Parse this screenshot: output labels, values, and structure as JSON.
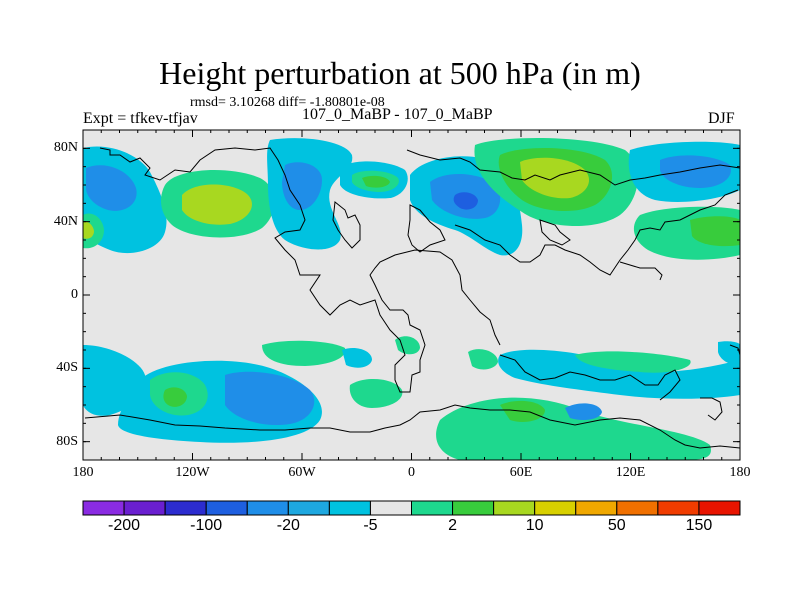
{
  "title": "Height perturbation at 500 hPa (in m)",
  "stats_line": "rmsd= 3.10268 diff= -1.80801e-08",
  "left_label": "Expt = tfkev-tfjav",
  "center_label": "107_0_MaBP - 107_0_MaBP",
  "right_label": "DJF",
  "map": {
    "lon_range": [
      -180,
      180
    ],
    "lat_range": [
      -90,
      90
    ],
    "x_ticks": [
      {
        "value": -180,
        "label": "180"
      },
      {
        "value": -120,
        "label": "120W"
      },
      {
        "value": -60,
        "label": "60W"
      },
      {
        "value": 0,
        "label": "0"
      },
      {
        "value": 60,
        "label": "60E"
      },
      {
        "value": 120,
        "label": "120E"
      },
      {
        "value": 180,
        "label": "180"
      }
    ],
    "y_ticks": [
      {
        "value": 80,
        "label": "80N"
      },
      {
        "value": 40,
        "label": "40N"
      },
      {
        "value": 0,
        "label": "0"
      },
      {
        "value": -40,
        "label": "40S"
      },
      {
        "value": -80,
        "label": "80S"
      }
    ],
    "background_color": "#e6e6e6"
  },
  "colorbar": {
    "colors": [
      "#8a2be2",
      "#6a1fd0",
      "#2c2ccf",
      "#1e5fe0",
      "#1f8ee8",
      "#1ea8e0",
      "#00c2e0",
      "#e6e6e6",
      "#1ed88e",
      "#38cc3c",
      "#a8d820",
      "#d8d000",
      "#f0a800",
      "#f07000",
      "#f03c00",
      "#e81400"
    ],
    "labels": [
      {
        "after_box": 1,
        "text": "-200"
      },
      {
        "after_box": 3,
        "text": "-100"
      },
      {
        "after_box": 5,
        "text": "-20"
      },
      {
        "after_box": 7,
        "text": "-5"
      },
      {
        "after_box": 9,
        "text": "2"
      },
      {
        "after_box": 11,
        "text": "10"
      },
      {
        "after_box": 13,
        "text": "50"
      },
      {
        "after_box": 15,
        "text": "150"
      }
    ]
  }
}
